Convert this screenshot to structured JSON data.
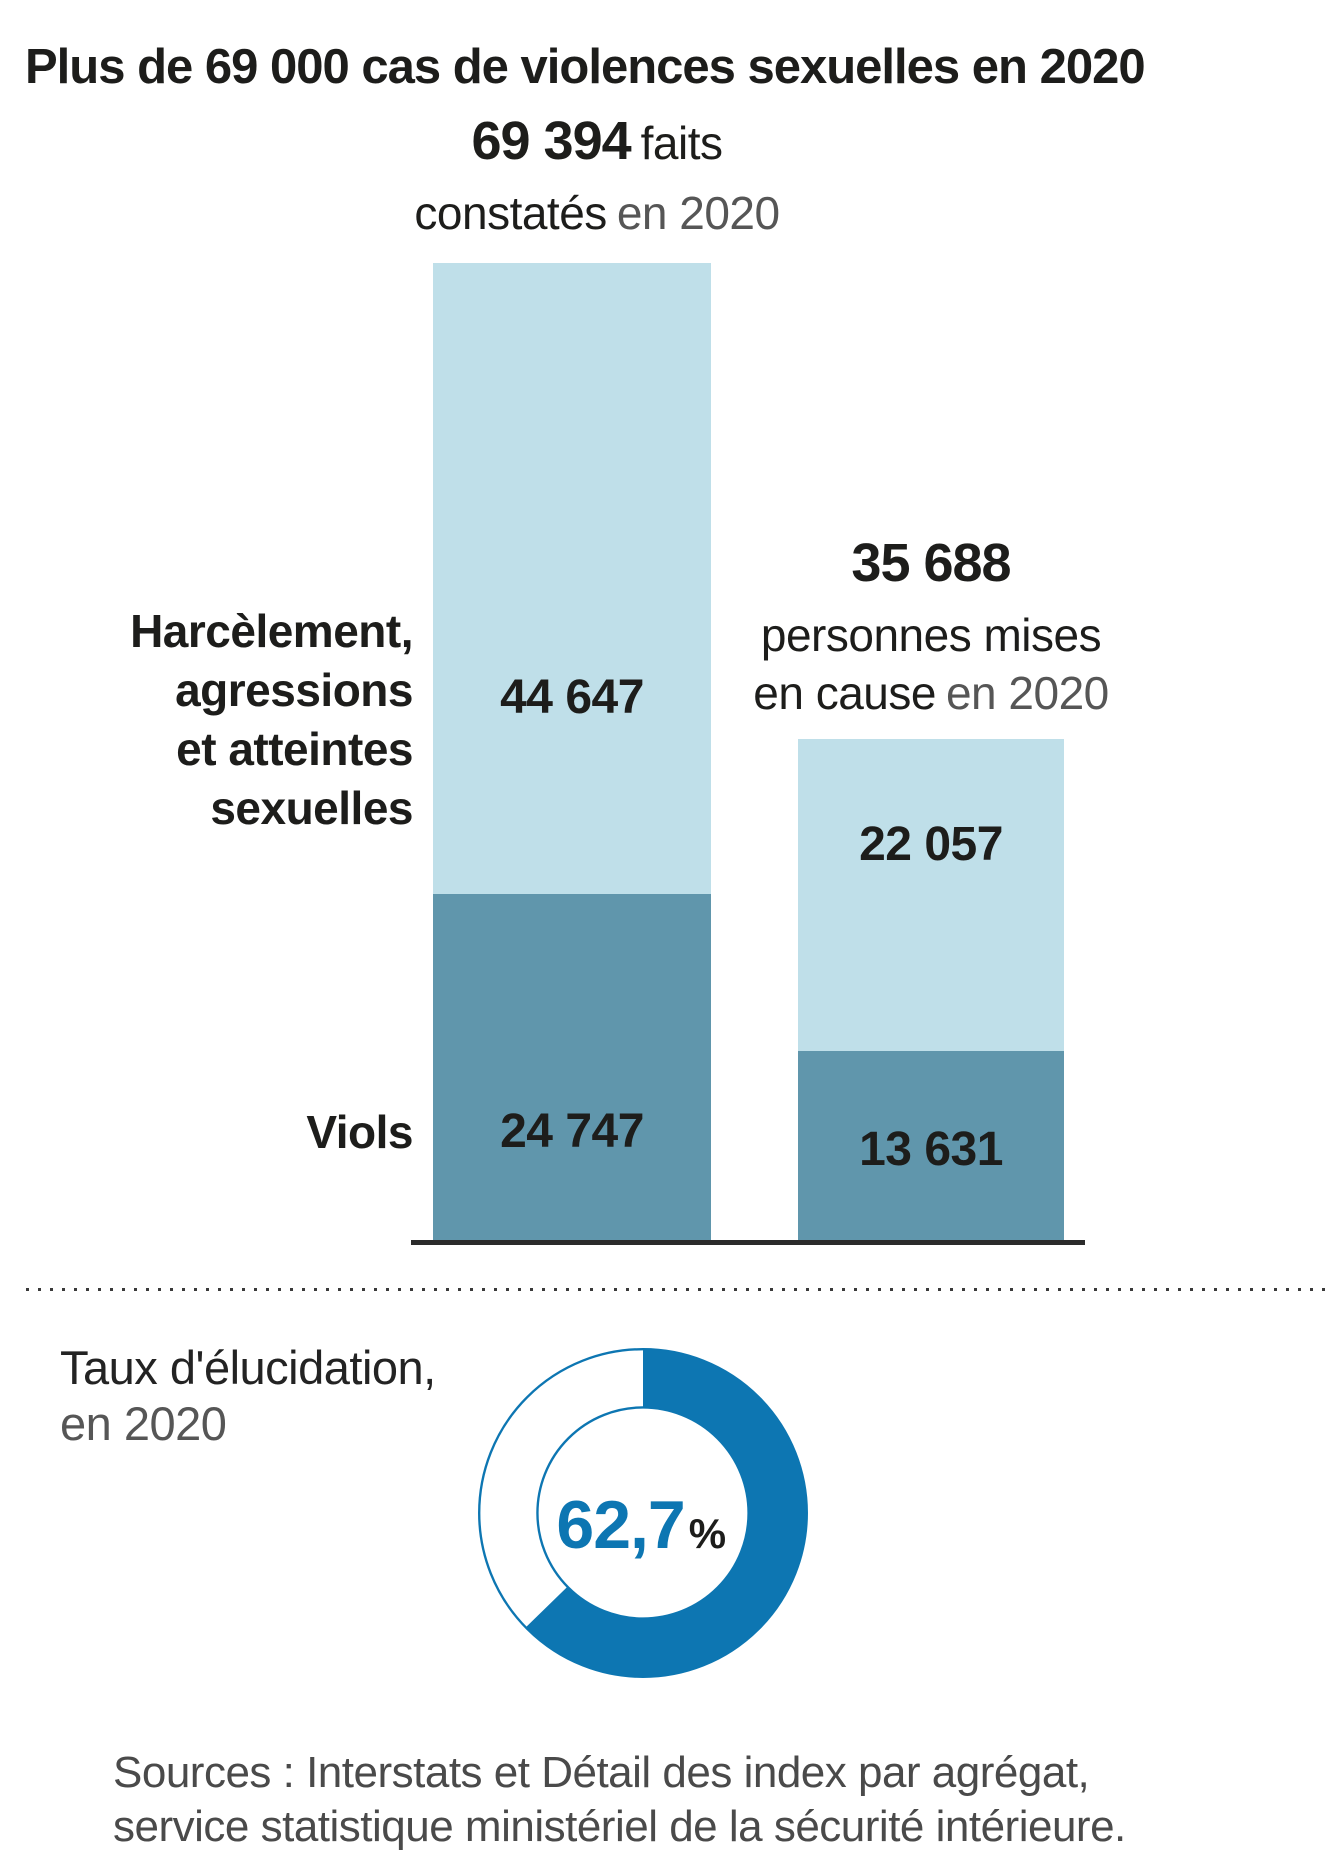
{
  "title": "Plus de 69 000 cas de violences sexuelles en 2020",
  "chart_data": [
    {
      "type": "bar",
      "subtype": "stacked",
      "title": "Plus de 69 000 cas de violences sexuelles en 2020",
      "categories": [
        "Harcèlement, agressions et atteintes sexuelles",
        "Viols"
      ],
      "bars": [
        {
          "name": "faits constatés en 2020",
          "total": 69394,
          "segments": {
            "harcelement": 44647,
            "viols": 24747
          }
        },
        {
          "name": "personnes mises en cause en 2020",
          "total": 35688,
          "segments": {
            "harcelement": 22057,
            "viols": 13631
          }
        }
      ],
      "colors": {
        "harcelement": "#bfdfe9",
        "viols": "#6096ac"
      },
      "legend_position": "left",
      "grid": false
    },
    {
      "type": "pie",
      "subtype": "donut",
      "title": "Taux d'élucidation, en 2020",
      "value_pct": 62.7,
      "remainder_pct": 37.3,
      "label": "62,7%",
      "color": "#0d76b2",
      "start_angle": "top",
      "direction": "clockwise"
    }
  ],
  "display": {
    "col1": {
      "value": "69 394",
      "unit": "faits",
      "line2_strong": "constatés",
      "line2_light": "en 2020"
    },
    "col2": {
      "value": "35 688",
      "line2": "personnes mises",
      "line3_strong": "en cause",
      "line3_light": "en 2020"
    },
    "group_label_lines": [
      "Harcèlement,",
      "agressions",
      "et atteintes",
      "sexuelles"
    ],
    "viols_label": "Viols",
    "values": {
      "b1_top": "44 647",
      "b1_bottom": "24 747",
      "b2_top": "22 057",
      "b2_bottom": "13 631"
    },
    "donut": {
      "label_line1": "Taux d'élucidation,",
      "label_line2": "en 2020",
      "value": "62,7",
      "percent_sign": "%"
    },
    "sources": {
      "line1": "Sources : Interstats et Détail des index par agrégat,",
      "line2": "service statistique ministériel de la sécurité intérieure."
    }
  }
}
